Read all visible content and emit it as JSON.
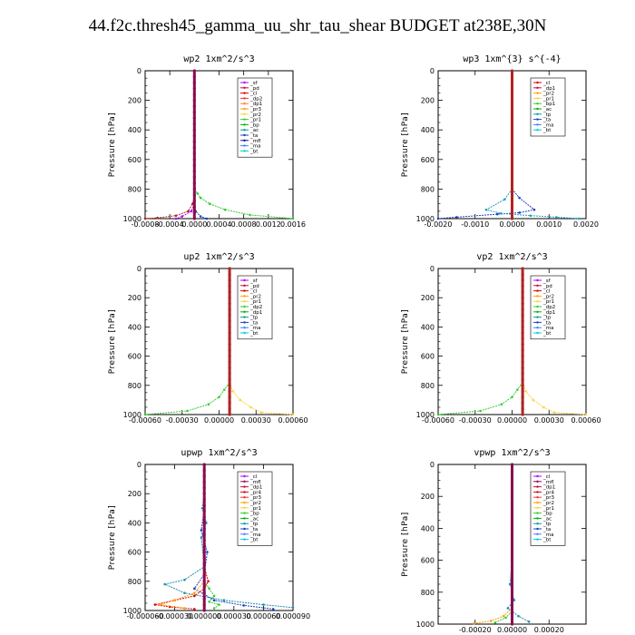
{
  "title": "44.f2c.thresh45_gamma_uu_shr_tau_shear  BUDGET at238E,30N",
  "chart_data": [
    {
      "type": "line",
      "title": "wp2   1xm^2/s^3",
      "ylabel": "Pressure  [hPa]",
      "xlim": [
        -0.0008,
        0.0016
      ],
      "ylim": [
        1000,
        0
      ],
      "xticks": [
        "-0.0008",
        "-0.0004",
        "0.0000",
        "0.0004",
        "0.0008",
        "0.0012",
        "0.0016"
      ],
      "yticks": [
        "0",
        "200",
        "400",
        "600",
        "800",
        "1000"
      ],
      "legend": [
        "_sf",
        "_pd",
        "_cl",
        "_dp2",
        "_dp1",
        "_pr3",
        "_pr2",
        "_pr1",
        "_bp",
        "_ac",
        "_ta",
        "_mfl",
        "_ma",
        "_bt"
      ],
      "legend_colors": [
        "#b000ff",
        "#c0103a",
        "#e00000",
        "#ff3030",
        "#ff8030",
        "#ffa000",
        "#ffd040",
        "#32cd32",
        "#00b000",
        "#00a0a0",
        "#2040c0",
        "#1010a0",
        "#4080ff",
        "#00d0d0"
      ],
      "series": [
        {
          "name": "_dp1",
          "color": "#32cd32",
          "x": [
            0,
            5e-05,
            0.0001,
            0.00025,
            0.0005,
            0.0009,
            0.0016
          ],
          "y": [
            800,
            830,
            860,
            900,
            940,
            975,
            1000
          ]
        },
        {
          "name": "_pr1",
          "color": "#b22222",
          "x": [
            0,
            -3e-05,
            -0.0001,
            -0.0003,
            -0.0006,
            -0.0008
          ],
          "y": [
            850,
            900,
            950,
            980,
            995,
            1000
          ]
        },
        {
          "name": "_sf",
          "color": "#b000ff",
          "x": [
            0,
            -5e-05,
            -0.0002,
            -0.0003
          ],
          "y": [
            900,
            950,
            985,
            1000
          ]
        },
        {
          "name": "_ac",
          "color": "#2040c0",
          "x": [
            0,
            2e-05,
            0.0001,
            0.0002
          ],
          "y": [
            900,
            950,
            985,
            1000
          ]
        },
        {
          "name": "_bt",
          "color": "#8b0a50",
          "x": [
            0,
            0
          ],
          "y": [
            0,
            1000
          ]
        }
      ]
    },
    {
      "type": "line",
      "title": "wp3   1xm^{3} s^{-4}",
      "ylabel": "Pressure  [hPa]",
      "xlim": [
        -0.002,
        0.002
      ],
      "ylim": [
        1000,
        0
      ],
      "xticks": [
        "-0.0020",
        "-0.0010",
        "0.0000",
        "0.0010",
        "0.0020"
      ],
      "yticks": [
        "0",
        "200",
        "400",
        "600",
        "800",
        "1000"
      ],
      "legend": [
        "_cl",
        "_dp1",
        "_pr2",
        "_pr1",
        "_bp1",
        "_ac",
        "_tp",
        "_ta",
        "_ma",
        "_bt"
      ],
      "legend_colors": [
        "#e00000",
        "#c0103a",
        "#ffa000",
        "#ffd040",
        "#32cd32",
        "#00b000",
        "#00a0a0",
        "#2040c0",
        "#4080ff",
        "#00d0d0"
      ],
      "series": [
        {
          "name": "_tp",
          "color": "#2040c0",
          "x": [
            0,
            0.0002,
            0.0006,
            0.0002,
            -0.0004,
            -0.0015,
            -0.002
          ],
          "y": [
            800,
            860,
            940,
            960,
            970,
            990,
            1000
          ]
        },
        {
          "name": "_ta",
          "color": "#20a0c0",
          "x": [
            0,
            -0.0002,
            -0.0007,
            -0.0003,
            0.0005,
            0.0012,
            0.0018
          ],
          "y": [
            800,
            870,
            940,
            965,
            980,
            990,
            1000
          ]
        },
        {
          "name": "_bt",
          "color": "#b22222",
          "x": [
            0,
            0
          ],
          "y": [
            0,
            1000
          ]
        }
      ]
    },
    {
      "type": "line",
      "title": "up2   1xm^2/s^3",
      "ylabel": "Pressure  [hPa]",
      "xlim": [
        -0.0008,
        0.0006
      ],
      "ylim": [
        1000,
        0
      ],
      "xticks": [
        "-0.00060",
        "-0.00030",
        "0.00000",
        "0.00030",
        "0.00060"
      ],
      "yticks": [
        "0",
        "200",
        "400",
        "600",
        "800",
        "1000"
      ],
      "legend": [
        "_sf",
        "_pd",
        "_cl",
        "_pr2",
        "_pr1",
        "_dp2",
        "_dp1",
        "_tp",
        "_ta",
        "_ma",
        "_bt"
      ],
      "legend_colors": [
        "#b000ff",
        "#c0103a",
        "#e00000",
        "#ffa000",
        "#ffd040",
        "#32cd32",
        "#00b000",
        "#00a0a0",
        "#2040c0",
        "#4080ff",
        "#00d0d0"
      ],
      "series": [
        {
          "name": "_dp1",
          "color": "#32cd32",
          "x": [
            0,
            -5e-05,
            -0.0001,
            -0.0002,
            -0.0004,
            -0.0008
          ],
          "y": [
            780,
            830,
            880,
            930,
            975,
            1000
          ]
        },
        {
          "name": "_pr1",
          "color": "#ffd040",
          "x": [
            0,
            3e-05,
            0.0001,
            0.0002,
            0.0003,
            0.0006
          ],
          "y": [
            780,
            840,
            900,
            950,
            985,
            1000
          ]
        },
        {
          "name": "_bt",
          "color": "#b22222",
          "x": [
            0,
            0
          ],
          "y": [
            0,
            1000
          ]
        }
      ]
    },
    {
      "type": "line",
      "title": "vp2   1xm^2/s^3",
      "ylabel": "Pressure  [hPa]",
      "xlim": [
        -0.0008,
        0.0006
      ],
      "ylim": [
        1000,
        0
      ],
      "xticks": [
        "-0.00060",
        "-0.00030",
        "0.00000",
        "0.00030",
        "0.00060"
      ],
      "yticks": [
        "0",
        "200",
        "400",
        "600",
        "800",
        "1000"
      ],
      "legend": [
        "_sf",
        "_pd",
        "_cl",
        "_pr2",
        "_pr1",
        "_dp2",
        "_dp1",
        "_tp",
        "_ta",
        "_ma",
        "_bt"
      ],
      "legend_colors": [
        "#b000ff",
        "#c0103a",
        "#e00000",
        "#ffa000",
        "#ffd040",
        "#32cd32",
        "#00b000",
        "#00a0a0",
        "#2040c0",
        "#4080ff",
        "#00d0d0"
      ],
      "series": [
        {
          "name": "_dp1",
          "color": "#32cd32",
          "x": [
            0,
            -5e-05,
            -0.0001,
            -0.0002,
            -0.0004,
            -0.0008
          ],
          "y": [
            780,
            830,
            880,
            930,
            975,
            1000
          ]
        },
        {
          "name": "_pr1",
          "color": "#ffd040",
          "x": [
            0,
            3e-05,
            0.0001,
            0.0002,
            0.0003,
            0.0006
          ],
          "y": [
            780,
            840,
            900,
            950,
            985,
            1000
          ]
        },
        {
          "name": "_bt",
          "color": "#b22222",
          "x": [
            0,
            0
          ],
          "y": [
            0,
            1000
          ]
        }
      ]
    },
    {
      "type": "line",
      "title": "upwp   1xm^2/s^3",
      "ylabel": "Pressure  [hPa]",
      "xlim": [
        -6e-05,
        9e-05
      ],
      "ylim": [
        1000,
        0
      ],
      "xticks": [
        "-0.000060",
        "-0.000030",
        "0.000000",
        "0.000030",
        "0.000060",
        "0.000090"
      ],
      "yticks": [
        "0",
        "200",
        "400",
        "600",
        "800",
        "1000"
      ],
      "legend": [
        "_cl",
        "_mfl",
        "_dp1",
        "_pr4",
        "_pr3",
        "_pr2",
        "_pr1",
        "_bp",
        "_ac",
        "_tp",
        "_ta",
        "_ma",
        "_bt"
      ],
      "legend_colors": [
        "#b000ff",
        "#8b0a50",
        "#c0103a",
        "#e00000",
        "#ff3030",
        "#ffa000",
        "#ffd040",
        "#32cd32",
        "#00b000",
        "#00a0a0",
        "#2040c0",
        "#4080ff",
        "#00d0d0"
      ],
      "series": [
        {
          "name": "_tp",
          "color": "#2090b0",
          "x": [
            0,
            -2e-06,
            2e-06,
            -3e-06,
            0,
            -2e-05,
            -4e-05,
            -2e-05,
            2e-05,
            6e-05,
            9e-05
          ],
          "y": [
            200,
            300,
            400,
            500,
            700,
            790,
            820,
            880,
            930,
            960,
            980
          ]
        },
        {
          "name": "_ta",
          "color": "#2040c0",
          "x": [
            0,
            -3e-06,
            3e-06,
            0,
            -1e-05,
            1e-05,
            4e-05,
            7e-05
          ],
          "y": [
            300,
            450,
            600,
            750,
            850,
            930,
            965,
            990
          ]
        },
        {
          "name": "_pr1",
          "color": "#e00000",
          "x": [
            0,
            4e-06,
            0,
            -1e-05,
            -3e-05,
            -5e-05,
            -3.5e-05,
            -1e-05
          ],
          "y": [
            700,
            800,
            850,
            900,
            930,
            960,
            975,
            990
          ]
        },
        {
          "name": "_pr2",
          "color": "#ffa000",
          "x": [
            0,
            -1e-05,
            -3e-05,
            -4.5e-05,
            -2e-05
          ],
          "y": [
            800,
            880,
            930,
            960,
            985
          ]
        },
        {
          "name": "_dp1",
          "color": "#32cd32",
          "x": [
            0,
            5e-06,
            1e-05,
            5e-06,
            1.5e-05,
            1e-05
          ],
          "y": [
            800,
            850,
            900,
            940,
            960,
            985
          ]
        },
        {
          "name": "_bt",
          "color": "#8b0a50",
          "x": [
            0,
            0
          ],
          "y": [
            0,
            1000
          ]
        }
      ]
    },
    {
      "type": "line",
      "title": "vpwp   1xm^2/s^3",
      "ylabel": "Pressure  [hPa]",
      "xlim": [
        -0.00035,
        0.00035
      ],
      "ylim": [
        1000,
        0
      ],
      "xticks": [
        "-0.00020",
        "0.00000",
        "0.00020"
      ],
      "yticks": [
        "0",
        "200",
        "400",
        "600",
        "800",
        "1000"
      ],
      "legend": [
        "_cl",
        "_mfl",
        "_dp1",
        "_pr4",
        "_pr3",
        "_pr2",
        "_pr1",
        "_bp",
        "_ac",
        "_tp",
        "_ta",
        "_ma",
        "_bt"
      ],
      "legend_colors": [
        "#b000ff",
        "#8b0a50",
        "#c0103a",
        "#e00000",
        "#ff3030",
        "#ffa000",
        "#ffd040",
        "#32cd32",
        "#00b000",
        "#00a0a0",
        "#2040c0",
        "#4080ff",
        "#00d0d0"
      ],
      "series": [
        {
          "name": "_tp",
          "color": "#2090b0",
          "x": [
            0,
            -1e-05,
            1e-05,
            -2e-05,
            3e-05,
            8e-05
          ],
          "y": [
            600,
            750,
            850,
            900,
            950,
            985
          ]
        },
        {
          "name": "_pr1",
          "color": "#ffa000",
          "x": [
            0,
            -4e-05,
            -0.0001,
            -0.00018
          ],
          "y": [
            900,
            950,
            980,
            995
          ]
        },
        {
          "name": "_dp1",
          "color": "#32cd32",
          "x": [
            0,
            -3e-05,
            -8e-05
          ],
          "y": [
            920,
            960,
            990
          ]
        },
        {
          "name": "_bt",
          "color": "#8b0a50",
          "x": [
            0,
            0
          ],
          "y": [
            0,
            1000
          ]
        }
      ]
    }
  ]
}
